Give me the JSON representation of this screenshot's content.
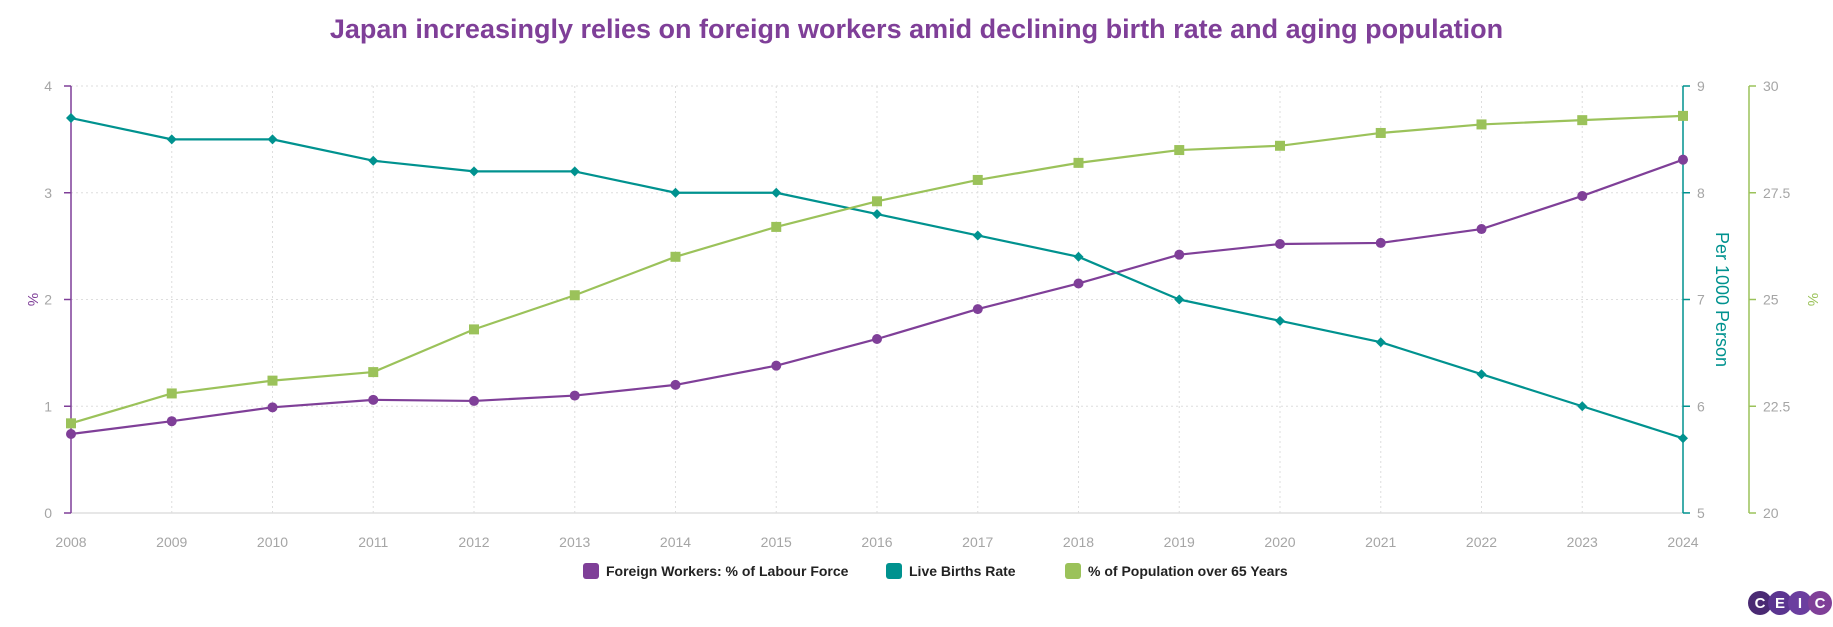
{
  "chart_data": {
    "type": "line",
    "title": "Japan increasingly relies on foreign workers amid declining birth rate and aging population",
    "x": [
      "2008",
      "2009",
      "2010",
      "2011",
      "2012",
      "2013",
      "2014",
      "2015",
      "2016",
      "2017",
      "2018",
      "2019",
      "2020",
      "2021",
      "2022",
      "2023",
      "2024"
    ],
    "series": [
      {
        "name": "Foreign Workers: % of Labour Force",
        "axis": "left",
        "color": "#7f3f98",
        "marker": "circle",
        "values": [
          0.74,
          0.86,
          0.99,
          1.06,
          1.05,
          1.1,
          1.2,
          1.38,
          1.63,
          1.91,
          2.15,
          2.42,
          2.52,
          2.53,
          2.66,
          2.97,
          3.31
        ]
      },
      {
        "name": "Live Births Rate",
        "axis": "right1",
        "color": "#00928f",
        "marker": "diamond",
        "values": [
          8.7,
          8.5,
          8.5,
          8.3,
          8.2,
          8.2,
          8.0,
          8.0,
          7.8,
          7.6,
          7.4,
          7.0,
          6.8,
          6.6,
          6.3,
          6.0,
          5.7
        ]
      },
      {
        "name": "% of Population over 65 Years",
        "axis": "right2",
        "color": "#9bc25a",
        "marker": "square",
        "values": [
          22.1,
          22.8,
          23.1,
          23.3,
          24.3,
          25.1,
          26.0,
          26.7,
          27.3,
          27.8,
          28.2,
          28.5,
          28.6,
          28.9,
          29.1,
          29.2,
          29.3
        ]
      }
    ],
    "axes": {
      "left": {
        "label": "%",
        "min": 0,
        "max": 4,
        "ticks": [
          "0",
          "1",
          "2",
          "3",
          "4"
        ],
        "color": "#7f3f98"
      },
      "right1": {
        "label": "Per 1000 Person",
        "min": 5,
        "max": 9,
        "ticks": [
          "5",
          "6",
          "7",
          "8",
          "9"
        ],
        "color": "#00928f"
      },
      "right2": {
        "label": "%",
        "min": 20,
        "max": 30,
        "ticks": [
          "20",
          "22.5",
          "25",
          "27.5",
          "30"
        ],
        "color": "#9bc25a"
      }
    },
    "grid": true,
    "legend_position": "bottom-center"
  },
  "logo": {
    "letters": [
      "C",
      "E",
      "I",
      "C"
    ],
    "colors": [
      "#4a2a73",
      "#5b3590",
      "#6b3e9f",
      "#7f3f98"
    ]
  }
}
